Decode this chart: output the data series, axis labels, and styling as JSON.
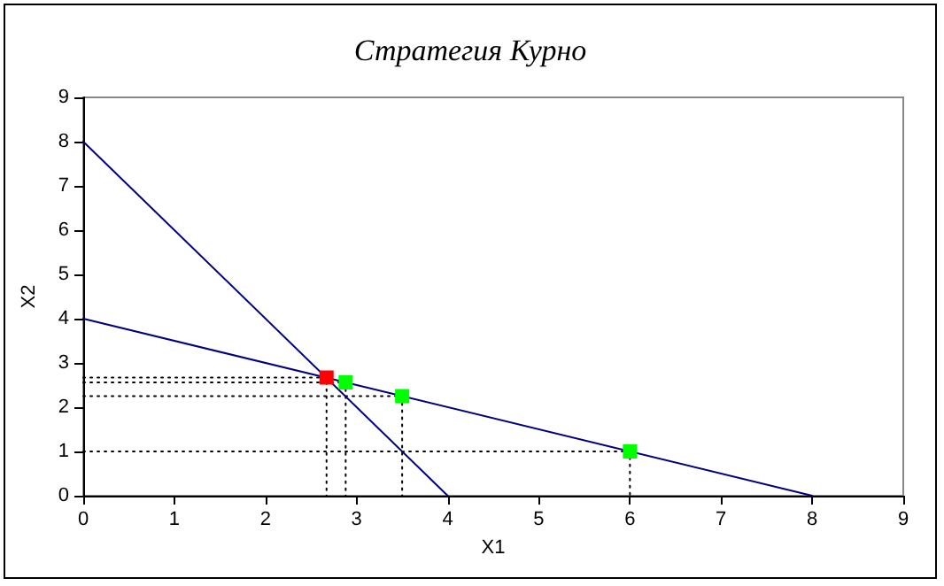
{
  "chart_data": {
    "type": "line",
    "title": "Стратегия Курно",
    "xlabel": "X1",
    "ylabel": "X2",
    "xlim": [
      0,
      9
    ],
    "xticks": [
      0,
      1,
      2,
      3,
      4,
      5,
      6,
      7,
      8,
      9
    ],
    "ylim": [
      0,
      9
    ],
    "yticks": [
      0,
      1,
      2,
      3,
      4,
      5,
      6,
      7,
      8,
      9
    ],
    "grid": false,
    "marker": "none",
    "line_style": "solid",
    "series": [
      {
        "color": "#000000",
        "line_style": "dotted",
        "x": [
          0,
          2.67,
          2.67
        ],
        "values": [
          2.67,
          2.67,
          0
        ]
      },
      {
        "color": "#000000",
        "line_style": "dotted",
        "x": [
          0,
          2.88,
          2.88
        ],
        "values": [
          2.56,
          2.56,
          0
        ]
      },
      {
        "color": "#000000",
        "line_style": "dotted",
        "x": [
          0,
          3.5,
          3.5
        ],
        "values": [
          2.25,
          2.25,
          0
        ]
      },
      {
        "color": "#000000",
        "line_style": "dotted",
        "x": [
          0,
          6,
          6
        ],
        "values": [
          1,
          1,
          0
        ]
      },
      {
        "color": "#000080",
        "x": [
          0,
          4
        ],
        "values": [
          8,
          0
        ]
      },
      {
        "color": "#000080",
        "x": [
          0,
          8
        ],
        "values": [
          4,
          0
        ]
      },
      {
        "type": "scatter",
        "color": "#ff0000",
        "marker": "square",
        "x": [
          2.67
        ],
        "values": [
          2.67
        ]
      },
      {
        "type": "scatter",
        "color": "#00ff00",
        "marker": "square",
        "x": [
          2.88,
          3.5,
          6
        ],
        "values": [
          2.56,
          2.25,
          1
        ]
      }
    ]
  }
}
